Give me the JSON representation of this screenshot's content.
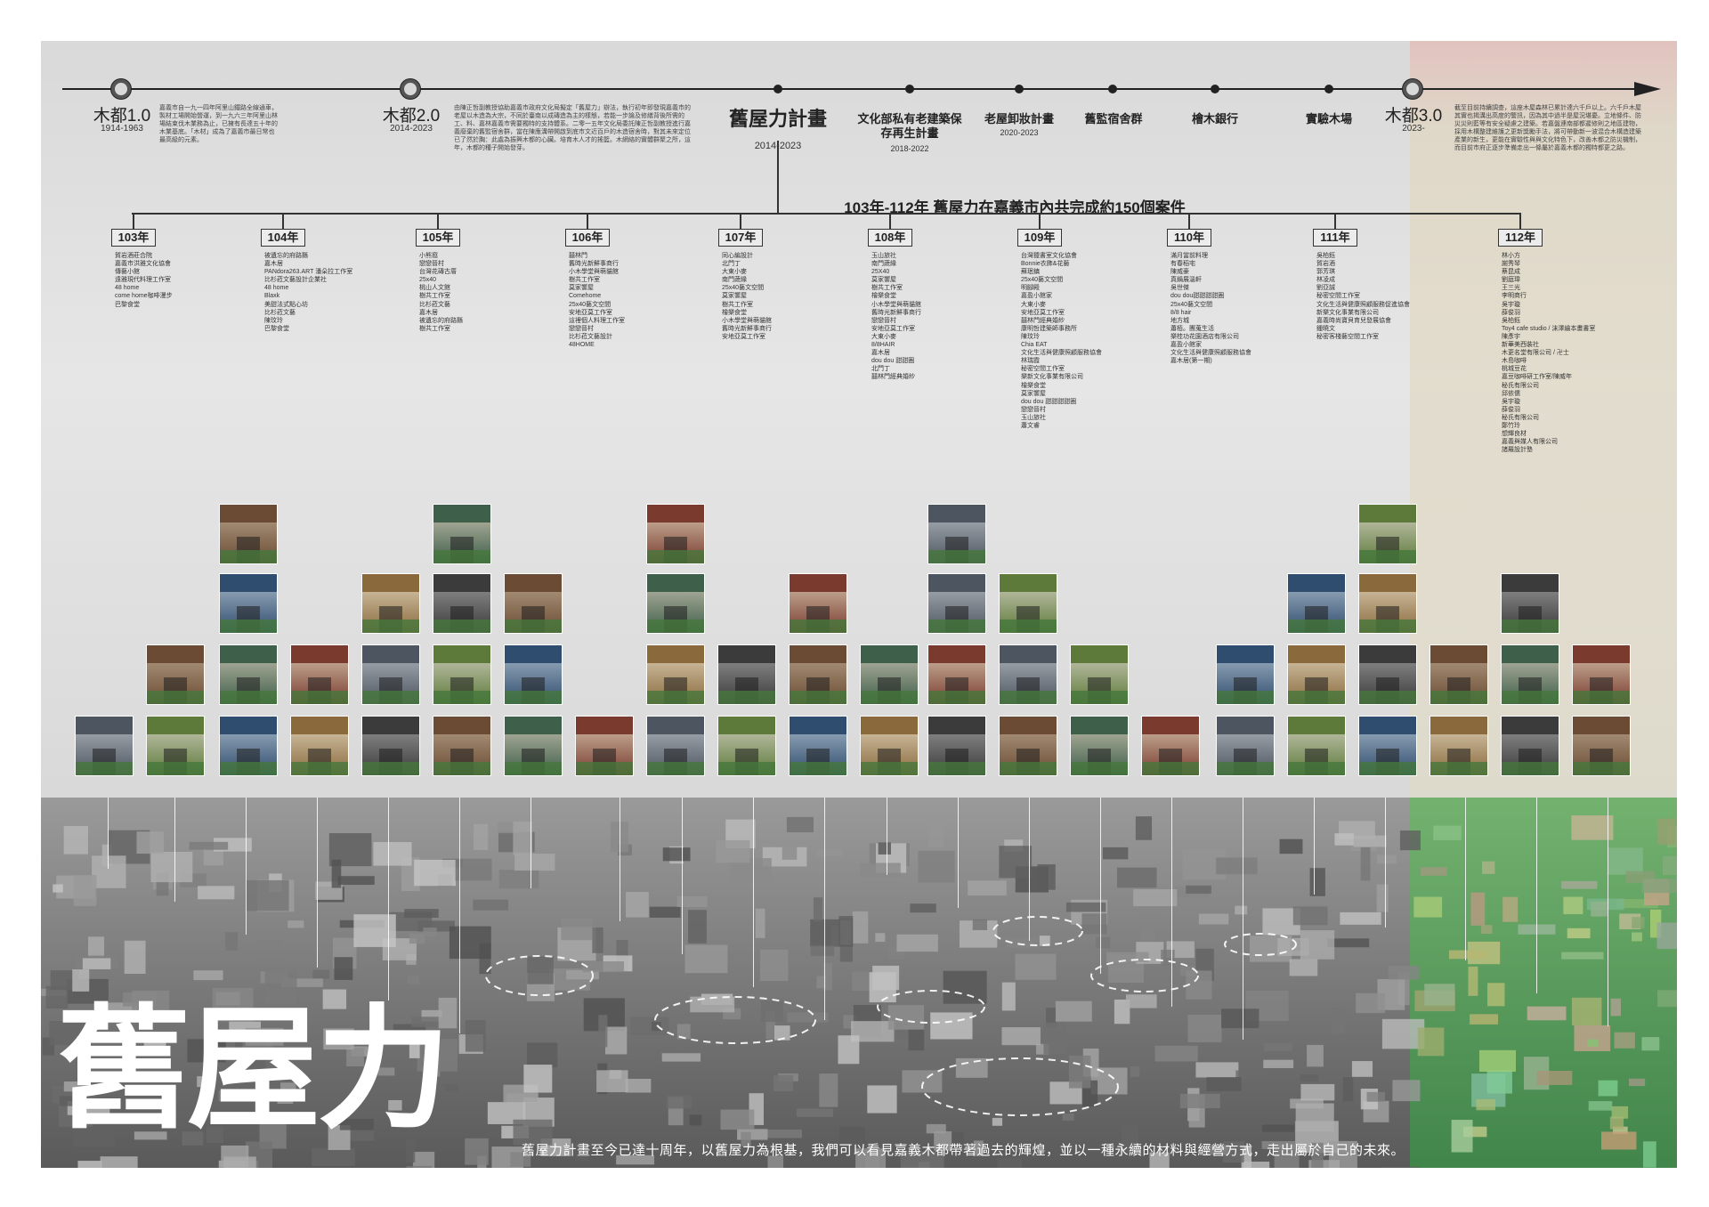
{
  "timeline": {
    "eras": [
      {
        "name": "木都1.0",
        "years": "1914-1963",
        "note": "嘉義市自一九一四年阿里山鐵路全線通車，製材工場開始營運，到一九六三年阿里山林場結束伐木業務為止，已擁有長達五十年的木業基底。「木材」成為了嘉義市最日常也最高級的元素。"
      },
      {
        "name": "木都2.0",
        "years": "2014-2023",
        "note": "由陳正哲副教授協助嘉義市政府文化局擬定「舊屋力」辦法，執行初年即發現嘉義市的老屋以木造為大宗，不同於臺南以成磚造為主的樣態，若能一步論及修繕背後所需的工、料、嘉林嘉義市需要獨特的支持體系。二零一五年文化局委託陳正哲副教授進行嘉義廢棄的舊監宿舍群，當在陳應溝帶開啟到底市文近百戶的木造宿舍時，對其未來定位已了然於胸：此處為振興木都的心臟。培育木人才的搖籃。木網絡的實體群聚之所，這年，木都的種子開始發芽。"
      },
      {
        "name": "木都3.0",
        "years": "2023-",
        "note": "截至目前持續調查，這座木屋森林已累計達六千戶以上。六千戶木屋其實也揭溝出高度的警訊，因為其中過半是屋況堪憂。立地條件、防災災則藍等有安全疑慮之建築。若嘉盤連南部都遲修則之地區建物，採用木構整建維護之更新獎勵手法，將可帶動新一波混合木構造建築產業的新生，更能在實驗性與與文化特色下，改善木都之防災機制，而目前市府正逐步準備走出一條屬於嘉義木都的獨特都更之路。"
      }
    ],
    "plan": {
      "name": "舊屋力計畫",
      "years": "2014-2023"
    },
    "events": [
      {
        "name": "文化部私有老建築保存再生計畫",
        "years": "2018-2022"
      },
      {
        "name": "老屋卸妝計畫",
        "years": "2020-2023"
      },
      {
        "name": "舊監宿舍群",
        "years": ""
      },
      {
        "name": "檜木銀行",
        "years": ""
      },
      {
        "name": "實驗木場",
        "years": ""
      }
    ]
  },
  "summary": "103年-112年 舊屋力在嘉義市內共完成約150個案件",
  "years": [
    {
      "label": "103年",
      "cases": [
        "賀岩酒莊合院",
        "嘉義市洪雅文化協會",
        "傳藝小館",
        "遠雅現代料理工作室",
        "48 home",
        "come home咖啡漫步",
        "巴黎食堂"
      ]
    },
    {
      "label": "104年",
      "cases": [
        "被遺忘的府路縣",
        "嘉木居",
        "PANdora263.ART 潘朵拉工作室",
        "比杉菈文藝設計企業社",
        "48 home",
        "Blaxk",
        "美甜法式點心坊",
        "比杉菈文藝",
        "陳玟玲",
        "巴黎食堂"
      ]
    },
    {
      "label": "105年",
      "cases": [
        "小熊窩",
        "戀戀晉村",
        "台灣花磚古厝",
        "25x40",
        "桃山人文館",
        "樹共工作室",
        "比杉菈文藝",
        "嘉木居",
        "被遺忘的府路縣",
        "樹共工作室"
      ]
    },
    {
      "label": "106年",
      "cases": [
        "囍林門",
        "舊時光新鮮事商行",
        "小木學堂與萌貓館",
        "樹共工作室",
        "莫家饗屋",
        "Comehome",
        "25x40藝文空間",
        "安地亞莫工作室",
        "這裡個人料理工作室",
        "戀戀晉村",
        "比杉菈文藝設計",
        "48HOME"
      ]
    },
    {
      "label": "107年",
      "cases": [
        "同心編設計",
        "北門丁",
        "大東小麥",
        "南門蔬緣",
        "25x40藝文空間",
        "莫家饗屋",
        "樹共工作室",
        "檜樂食堂",
        "小木學堂與萌貓館",
        "舊時光新鮮事商行",
        "安地亞莫工作室"
      ]
    },
    {
      "label": "108年",
      "cases": [
        "玉山旅社",
        "南門蔬緣",
        "25X40",
        "莫家饗屋",
        "樹共工作室",
        "檜樂食堂",
        "小木學堂與萌貓館",
        "舊時光新鮮事商行",
        "戀戀晉村",
        "安地亞莫工作室",
        "大東小麥",
        "8/8HAIR",
        "嘉木居",
        "dou dou 甜甜圈",
        "北門丁",
        "囍林門經典婚紗"
      ]
    },
    {
      "label": "109年",
      "cases": [
        "台灣獵書室文化協會",
        "Bonnie衣飾&花藝",
        "蘇珉鎮",
        "25x40藝文空間",
        "明腳殿",
        "嘉盈小館家",
        "大東小麥",
        "安地亞莫工作室",
        "囍林門經典婚紗",
        "康明哲建築師事務所",
        "陳玟玲",
        "Chia EAT",
        "文化生活與健康照顧服務協會",
        "林瑞霞",
        "秘密空間工作室",
        "樂新文化事業有限公司",
        "檜樂食堂",
        "莫家饗屋",
        "dou dou 甜甜甜甜圈",
        "戀戀晉村",
        "玉山旅社",
        "蕭文睿"
      ]
    },
    {
      "label": "110年",
      "cases": [
        "滿月當前料理",
        "有春稻宅",
        "陳威豪",
        "真鍋展溫軒",
        "吳世傑",
        "dou dou甜甜甜甜圈",
        "25x40藝文空間",
        "8/8 hair",
        "地方城",
        "蕭栢。團蒐生活",
        "樂桂功花園酒店有限公司",
        "嘉盈小館家",
        "文化生活與健康照顧服務協會",
        "嘉木居(第一期)"
      ]
    },
    {
      "label": "111年",
      "cases": [
        "吳柏鈺",
        "賀岩酒",
        "郭芳琪",
        "林凌成",
        "劉亞誠",
        "秘密空間工作室",
        "文化生活與健康照顧服務促進協會",
        "新樂文化事業有限公司",
        "嘉義時尚寶貝育兒發展協會",
        "鍾曉文",
        "秘密客棧藝空間工作室"
      ]
    },
    {
      "label": "112年",
      "cases": [
        "林小方",
        "謝秀琴",
        "蔡昆成",
        "劉庭瑋",
        "王三光",
        "李明商行",
        "吳宇璇",
        "薛俊羽",
        "吳柏鈺",
        "Toy4 cafe studio / 沫澤繪本畫書室",
        "陳彥宇",
        "新華美西裝社",
        "木更名堂有限公司 / 卍士",
        "木島咖啡",
        "桃城豆花",
        "嘉豆咖啡研工作室/陳威年",
        "秘氏有限公司",
        "邱依儒",
        "吳宇璇",
        "薛俊羽",
        "秘氏有限公司",
        "鄭竹玲",
        "想輝良材",
        "嘉義與媒人有限公司",
        "諸羅設計塾"
      ]
    }
  ],
  "big_title": "舊屋力",
  "tagline": "舊屋力計畫至今已達十周年，以舊屋力為根基，我們可以看見嘉義木都帶著過去的輝煌，並以一種永續的材料與經營方式，走出屬於自己的未來。",
  "colors": {
    "background": "#dedede",
    "future_band": "#e2dac4",
    "line": "#222222",
    "accent_green": "#4f9a5a"
  }
}
